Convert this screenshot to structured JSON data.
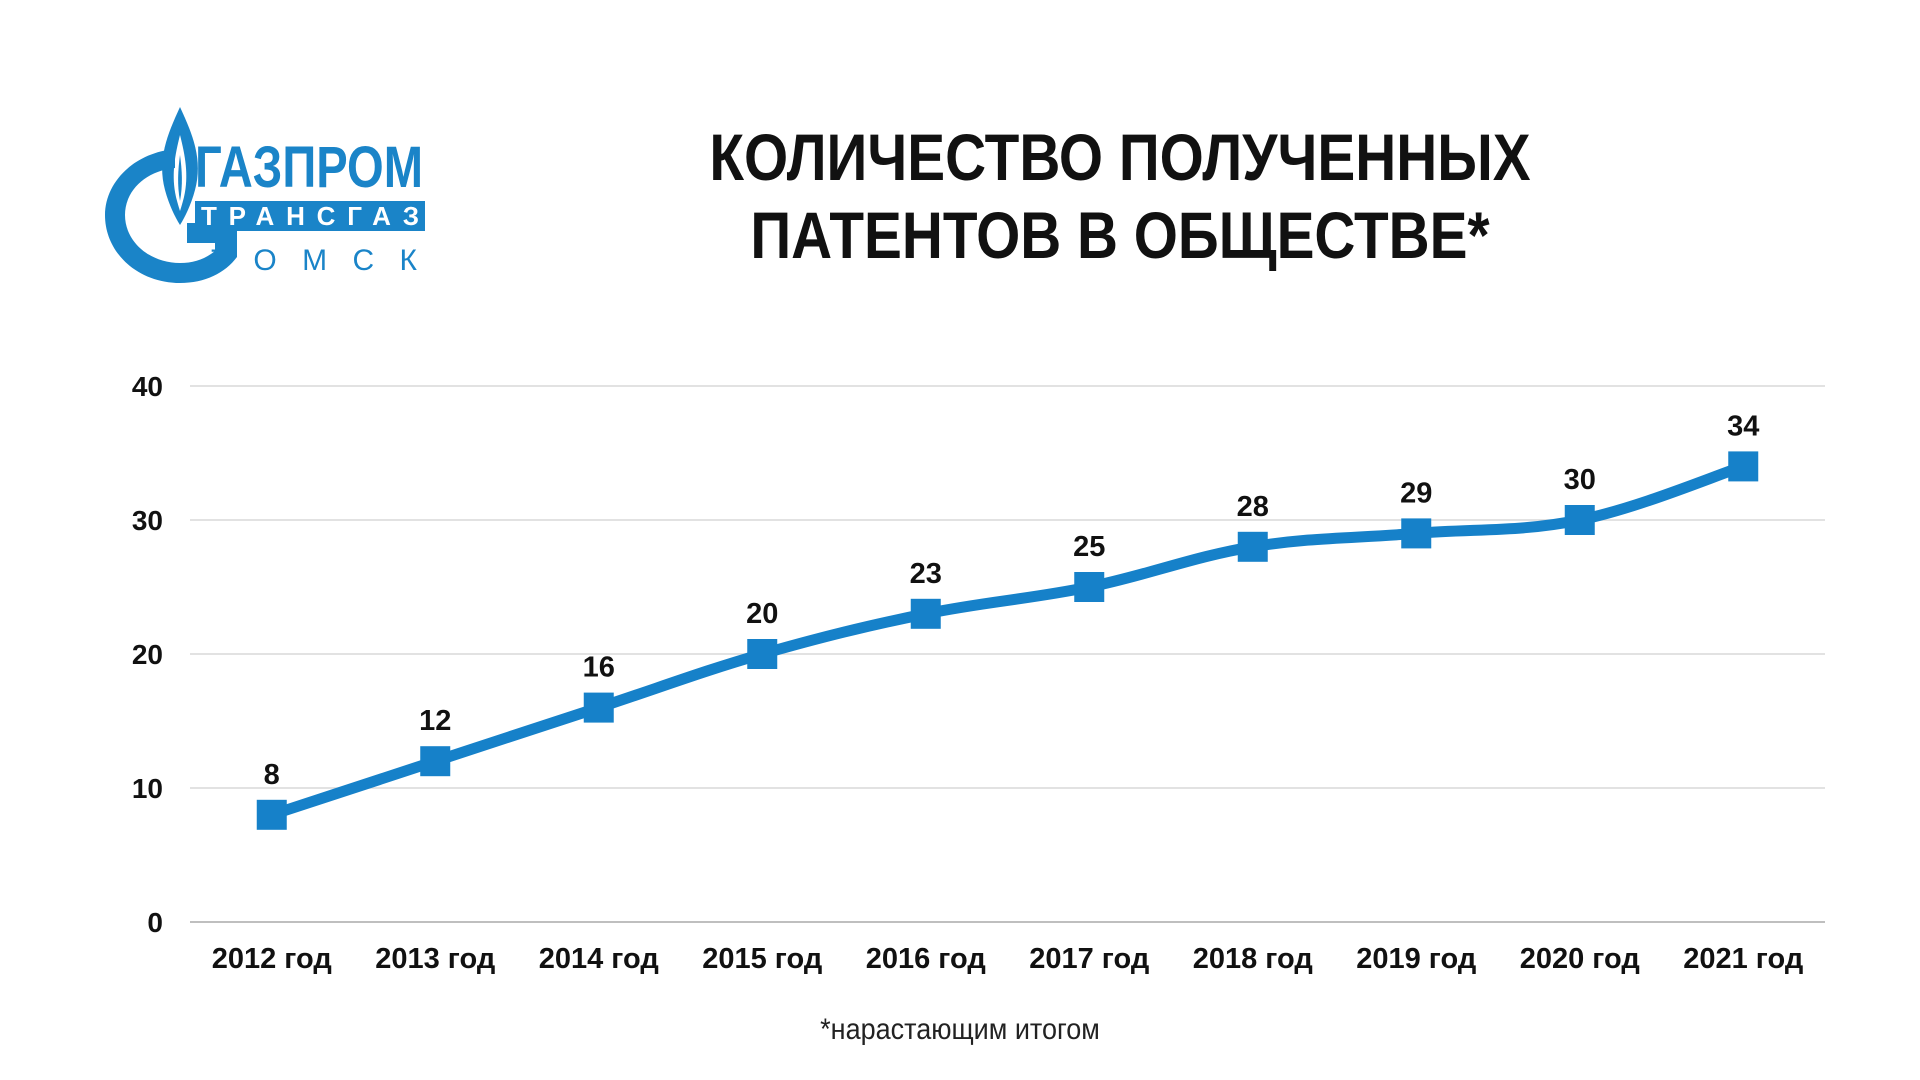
{
  "logo": {
    "name": "gazprom-logo",
    "line1": "ГАЗПРОМ",
    "line2": "ТРАНСГАЗ",
    "line3": "ТОМСК",
    "color": "#1a84c8"
  },
  "title": "КОЛИЧЕСТВО ПОЛУЧЕННЫХ ПАТЕНТОВ В ОБЩЕСТВЕ*",
  "footnote": "*нарастающим итогом",
  "colors": {
    "line": "#1681c9",
    "grid": "#d9d9d9",
    "axis": "#bfbfbf",
    "text": "#111111"
  },
  "chart_data": {
    "type": "line",
    "categories": [
      "2012 год",
      "2013 год",
      "2014 год",
      "2015 год",
      "2016 год",
      "2017 год",
      "2018 год",
      "2019 год",
      "2020 год",
      "2021 год"
    ],
    "series": [
      {
        "values": [
          8,
          12,
          16,
          20,
          23,
          25,
          28,
          29,
          30,
          34
        ]
      }
    ],
    "y_ticks": [
      0,
      10,
      20,
      30,
      40
    ],
    "ylim": [
      0,
      40
    ],
    "grid": true,
    "marker": "square",
    "smooth": true,
    "data_labels": true
  }
}
